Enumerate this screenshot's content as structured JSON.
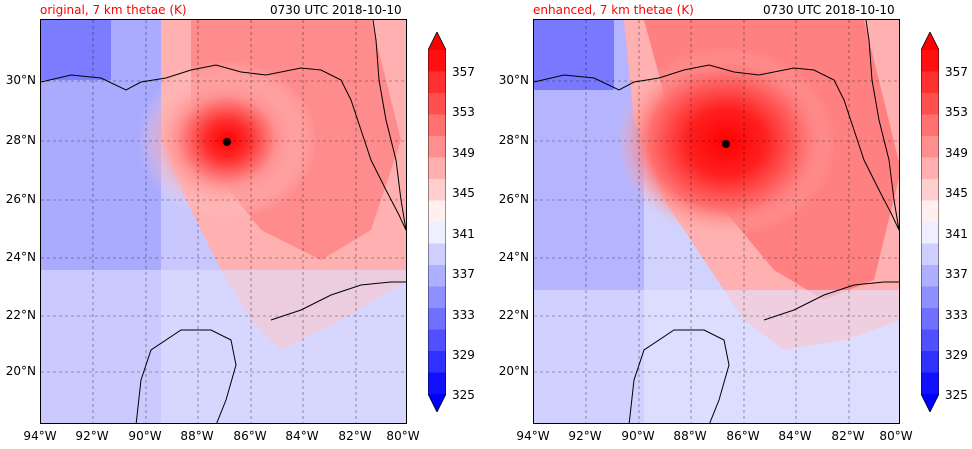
{
  "panels": [
    {
      "id": "original",
      "title_left": "original, 7 km thetae (K)",
      "title_right": "0730 UTC 2018-10-10"
    },
    {
      "id": "enhanced",
      "title_left": "enhanced, 7 km thetae (K)",
      "title_right": "0730 UTC 2018-10-10"
    }
  ],
  "x_ticks": [
    "94°W",
    "92°W",
    "90°W",
    "88°W",
    "86°W",
    "84°W",
    "82°W",
    "80°W"
  ],
  "y_ticks": [
    "30°N",
    "28°N",
    "26°N",
    "24°N",
    "22°N",
    "20°N"
  ],
  "colorbar": {
    "labels": [
      "357",
      "353",
      "349",
      "345",
      "341",
      "337",
      "333",
      "329",
      "325"
    ],
    "levels": [
      325,
      327,
      329,
      331,
      333,
      335,
      337,
      339,
      341,
      343,
      345,
      347,
      349,
      351,
      353,
      355,
      357,
      359
    ],
    "colors": {
      "min": "#0000ff",
      "mid": "#ffffff",
      "max": "#ff0000"
    }
  },
  "colors": {
    "title_red": "#ff0000",
    "text": "#000000",
    "coast": "#000000",
    "grid": "#000000"
  }
}
